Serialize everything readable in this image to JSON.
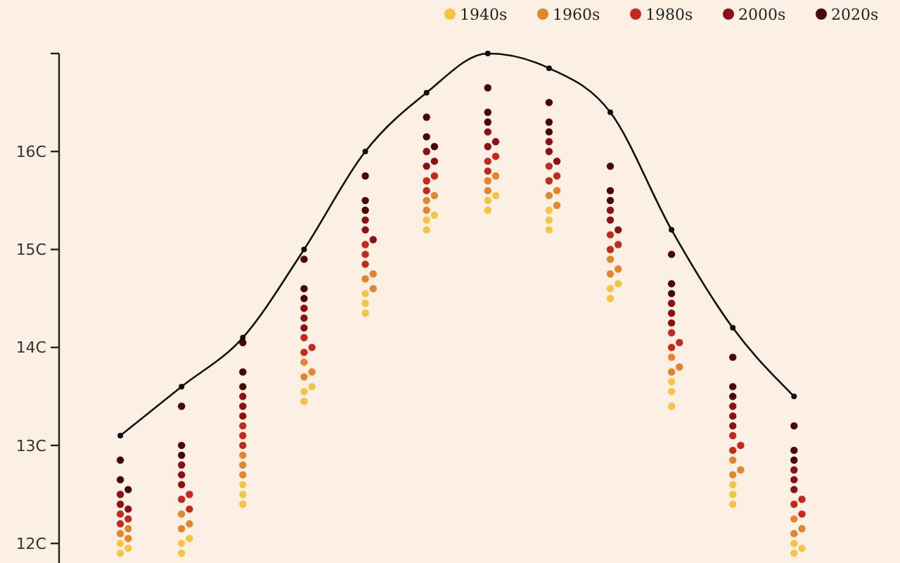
{
  "chart_data": {
    "type": "scatter",
    "categories": [
      null,
      null,
      null,
      null,
      null,
      null,
      null,
      null,
      null,
      null,
      null,
      null
    ],
    "ylim": [
      11.8,
      17.0
    ],
    "yticks": [
      {
        "value": 12,
        "label": "12C"
      },
      {
        "value": 13,
        "label": "13C"
      },
      {
        "value": 14,
        "label": "14C"
      },
      {
        "value": 15,
        "label": "15C"
      },
      {
        "value": 16,
        "label": "16C"
      }
    ],
    "tick_labels": "y",
    "grid": false,
    "legend": "top right",
    "marker": "circle",
    "series": [
      {
        "name": "1940s",
        "color": "#f6c445",
        "values": [
          11.9,
          11.9,
          12.4,
          13.45,
          14.35,
          15.2,
          15.4,
          15.2,
          14.5,
          13.4,
          12.4,
          11.9
        ]
      },
      {
        "color": "#f6c445",
        "values": [
          11.95,
          12.0,
          12.5,
          13.55,
          14.45,
          15.3,
          15.5,
          15.3,
          14.6,
          13.55,
          12.5,
          11.95
        ]
      },
      {
        "color": "#f6c445",
        "values": [
          12.0,
          12.05,
          12.6,
          13.6,
          14.55,
          15.35,
          15.55,
          15.4,
          14.65,
          13.65,
          12.6,
          12.0
        ]
      },
      {
        "name": "1960s",
        "color": "#e2862e",
        "values": [
          12.05,
          12.15,
          12.7,
          13.7,
          14.6,
          15.4,
          15.6,
          15.45,
          14.75,
          13.75,
          12.7,
          12.1
        ]
      },
      {
        "color": "#e2862e",
        "values": [
          12.1,
          12.2,
          12.8,
          13.75,
          14.7,
          15.5,
          15.7,
          15.55,
          14.8,
          13.8,
          12.75,
          12.15
        ]
      },
      {
        "color": "#e2862e",
        "values": [
          12.15,
          12.3,
          12.9,
          13.85,
          14.75,
          15.55,
          15.75,
          15.6,
          14.9,
          13.9,
          12.85,
          12.25
        ]
      },
      {
        "name": "1980s",
        "color": "#c42a1c",
        "values": [
          12.2,
          12.35,
          13.0,
          13.95,
          14.85,
          15.6,
          15.8,
          15.7,
          15.0,
          14.0,
          12.95,
          12.3
        ]
      },
      {
        "color": "#c42a1c",
        "values": [
          12.25,
          12.45,
          13.1,
          14.0,
          14.95,
          15.7,
          15.9,
          15.75,
          15.05,
          14.05,
          13.0,
          12.4
        ]
      },
      {
        "color": "#c42a1c",
        "values": [
          12.3,
          12.5,
          13.2,
          14.1,
          15.05,
          15.75,
          15.95,
          15.85,
          15.15,
          14.15,
          13.1,
          12.45
        ]
      },
      {
        "name": "2000s",
        "color": "#8e1014",
        "values": [
          12.35,
          12.6,
          13.3,
          14.2,
          15.1,
          15.85,
          16.05,
          15.9,
          15.2,
          14.25,
          13.2,
          12.55
        ]
      },
      {
        "color": "#8e1014",
        "values": [
          12.4,
          12.7,
          13.4,
          14.3,
          15.2,
          15.9,
          16.1,
          16.0,
          15.3,
          14.35,
          13.3,
          12.65
        ]
      },
      {
        "color": "#8e1014",
        "values": [
          12.5,
          12.8,
          13.5,
          14.4,
          15.3,
          16.0,
          16.2,
          16.1,
          15.4,
          14.45,
          13.4,
          12.75
        ]
      },
      {
        "name": "2020s",
        "color": "#4a0708",
        "values": [
          12.55,
          12.9,
          13.6,
          14.5,
          15.4,
          16.05,
          16.3,
          16.2,
          15.5,
          14.55,
          13.5,
          12.85
        ]
      },
      {
        "color": "#4a0708",
        "values": [
          12.65,
          13.0,
          13.75,
          14.6,
          15.5,
          16.15,
          16.4,
          16.3,
          15.6,
          14.65,
          13.6,
          12.95
        ]
      },
      {
        "color": "#4a0708",
        "values": [
          12.85,
          13.4,
          14.05,
          14.9,
          15.75,
          16.35,
          16.65,
          16.5,
          15.85,
          14.95,
          13.9,
          13.2
        ]
      },
      {
        "type": "line",
        "color": "#111111",
        "line_style": "solid",
        "values": [
          13.1,
          13.6,
          14.1,
          15.0,
          16.0,
          16.6,
          17.0,
          16.85,
          16.4,
          15.2,
          14.2,
          13.5
        ]
      }
    ]
  }
}
